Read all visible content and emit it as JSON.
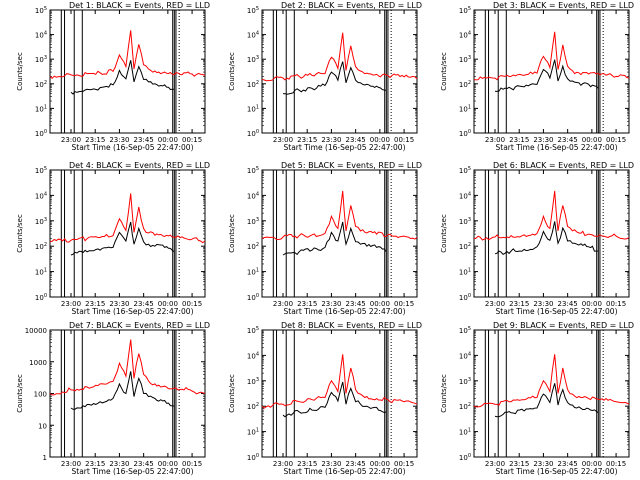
{
  "figure": {
    "start_time_label": "Start Time (16-Sep-05 22:47:00)",
    "ylabel": "Counts/sec",
    "colors": {
      "events": "#000000",
      "lld": "#ff0000",
      "background": "#ffffff"
    }
  },
  "chart_data": [
    {
      "type": "line",
      "title": "Det 1: BLACK = Events, RED = LLD",
      "xlabel": "Start Time (16-Sep-05 22:47:00)",
      "ylabel": "Counts/sec",
      "xlim": [
        "22:47",
        "00:23"
      ],
      "ylim": [
        1,
        100000
      ],
      "yscale": "log",
      "y_tick_labels": [
        "10^0",
        "10^1",
        "10^2",
        "10^3",
        "10^4",
        "10^5"
      ],
      "x_tick_labels": [
        "23:00",
        "23:15",
        "23:30",
        "23:45",
        "00:00",
        "00:15"
      ],
      "series": [
        {
          "name": "Events",
          "color": "#000000",
          "x": [
            "23:00",
            "23:10",
            "23:18",
            "23:26",
            "23:30",
            "23:34",
            "23:37",
            "23:39",
            "23:42",
            "23:45",
            "23:48",
            "23:52",
            "23:58",
            "00:04"
          ],
          "values": [
            45,
            60,
            70,
            90,
            350,
            160,
            900,
            120,
            500,
            150,
            120,
            100,
            90,
            60
          ]
        },
        {
          "name": "LLD",
          "color": "#ff0000",
          "x": [
            "22:47",
            "23:00",
            "23:10",
            "23:18",
            "23:26",
            "23:30",
            "23:34",
            "23:37",
            "23:39",
            "23:42",
            "23:45",
            "23:48",
            "23:52",
            "23:58",
            "00:05",
            "00:15",
            "00:23"
          ],
          "values": [
            200,
            230,
            260,
            280,
            320,
            1500,
            500,
            15000,
            400,
            4000,
            600,
            400,
            330,
            300,
            280,
            250,
            220
          ]
        }
      ]
    },
    {
      "type": "line",
      "title": "Det 2: BLACK = Events, RED = LLD",
      "xlabel": "Start Time (16-Sep-05 22:47:00)",
      "ylabel": "Counts/sec",
      "xlim": [
        "22:47",
        "00:23"
      ],
      "ylim": [
        1,
        100000
      ],
      "yscale": "log",
      "y_tick_labels": [
        "10^0",
        "10^1",
        "10^2",
        "10^3",
        "10^4",
        "10^5"
      ],
      "x_tick_labels": [
        "23:00",
        "23:15",
        "23:30",
        "23:45",
        "00:00",
        "00:15"
      ],
      "series": [
        {
          "name": "Events",
          "color": "#000000",
          "x": [
            "23:00",
            "23:10",
            "23:18",
            "23:26",
            "23:30",
            "23:34",
            "23:37",
            "23:39",
            "23:42",
            "23:45",
            "23:48",
            "23:52",
            "23:58",
            "00:04"
          ],
          "values": [
            40,
            55,
            65,
            85,
            300,
            140,
            800,
            110,
            450,
            140,
            110,
            95,
            80,
            55
          ]
        },
        {
          "name": "LLD",
          "color": "#ff0000",
          "x": [
            "22:47",
            "23:00",
            "23:10",
            "23:18",
            "23:26",
            "23:30",
            "23:34",
            "23:37",
            "23:39",
            "23:42",
            "23:45",
            "23:48",
            "23:52",
            "23:58",
            "00:05",
            "00:15",
            "00:23"
          ],
          "values": [
            150,
            170,
            200,
            220,
            260,
            1200,
            420,
            12000,
            350,
            3500,
            500,
            330,
            270,
            240,
            220,
            190,
            160
          ]
        }
      ]
    },
    {
      "type": "line",
      "title": "Det 3: BLACK = Events, RED = LLD",
      "xlabel": "Start Time (16-Sep-05 22:47:00)",
      "ylabel": "Counts/sec",
      "xlim": [
        "22:47",
        "00:23"
      ],
      "ylim": [
        1,
        100000
      ],
      "yscale": "log",
      "y_tick_labels": [
        "10^0",
        "10^1",
        "10^2",
        "10^3",
        "10^4",
        "10^5"
      ],
      "x_tick_labels": [
        "23:00",
        "23:15",
        "23:30",
        "23:45",
        "00:00",
        "00:15"
      ],
      "series": [
        {
          "name": "Events",
          "color": "#000000",
          "x": [
            "23:00",
            "23:10",
            "23:18",
            "23:26",
            "23:30",
            "23:34",
            "23:37",
            "23:39",
            "23:42",
            "23:45",
            "23:48",
            "23:52",
            "23:58",
            "00:04"
          ],
          "values": [
            50,
            65,
            75,
            95,
            380,
            170,
            950,
            130,
            520,
            160,
            130,
            110,
            95,
            65
          ]
        },
        {
          "name": "LLD",
          "color": "#ff0000",
          "x": [
            "22:47",
            "23:00",
            "23:10",
            "23:18",
            "23:26",
            "23:30",
            "23:34",
            "23:37",
            "23:39",
            "23:42",
            "23:45",
            "23:48",
            "23:52",
            "23:58",
            "00:05",
            "00:15",
            "00:23"
          ],
          "values": [
            150,
            170,
            200,
            220,
            270,
            1300,
            450,
            13000,
            380,
            3800,
            520,
            340,
            280,
            250,
            230,
            200,
            170
          ]
        }
      ]
    },
    {
      "type": "line",
      "title": "Det 4: BLACK = Events, RED = LLD",
      "xlabel": "Start Time (16-Sep-05 22:47:00)",
      "ylabel": "Counts/sec",
      "xlim": [
        "22:47",
        "00:23"
      ],
      "ylim": [
        1,
        100000
      ],
      "yscale": "log",
      "y_tick_labels": [
        "10^0",
        "10^1",
        "10^2",
        "10^3",
        "10^4",
        "10^5"
      ],
      "x_tick_labels": [
        "23:00",
        "23:15",
        "23:30",
        "23:45",
        "00:00",
        "00:15"
      ],
      "series": [
        {
          "name": "Events",
          "color": "#000000",
          "x": [
            "23:00",
            "23:10",
            "23:18",
            "23:26",
            "23:30",
            "23:34",
            "23:37",
            "23:39",
            "23:42",
            "23:45",
            "23:48",
            "23:52",
            "23:58",
            "00:04"
          ],
          "values": [
            45,
            60,
            70,
            90,
            350,
            160,
            900,
            120,
            500,
            150,
            120,
            100,
            90,
            60
          ]
        },
        {
          "name": "LLD",
          "color": "#ff0000",
          "x": [
            "22:47",
            "23:00",
            "23:10",
            "23:18",
            "23:26",
            "23:30",
            "23:34",
            "23:37",
            "23:39",
            "23:42",
            "23:45",
            "23:48",
            "23:52",
            "23:58",
            "00:05",
            "00:15",
            "00:23"
          ],
          "values": [
            150,
            170,
            200,
            220,
            260,
            1200,
            420,
            12000,
            350,
            3500,
            500,
            330,
            270,
            240,
            220,
            190,
            160
          ]
        }
      ]
    },
    {
      "type": "line",
      "title": "Det 5: BLACK = Events, RED = LLD",
      "xlabel": "Start Time (16-Sep-05 22:47:00)",
      "ylabel": "Counts/sec",
      "xlim": [
        "22:47",
        "00:23"
      ],
      "ylim": [
        1,
        100000
      ],
      "yscale": "log",
      "y_tick_labels": [
        "10^0",
        "10^1",
        "10^2",
        "10^3",
        "10^4",
        "10^5"
      ],
      "x_tick_labels": [
        "23:00",
        "23:15",
        "23:30",
        "23:45",
        "00:00",
        "00:15"
      ],
      "series": [
        {
          "name": "Events",
          "color": "#000000",
          "x": [
            "23:00",
            "23:10",
            "23:18",
            "23:26",
            "23:30",
            "23:34",
            "23:37",
            "23:39",
            "23:42",
            "23:45",
            "23:48",
            "23:52",
            "23:58",
            "00:04"
          ],
          "values": [
            45,
            60,
            70,
            90,
            350,
            160,
            900,
            120,
            500,
            150,
            120,
            100,
            90,
            60
          ]
        },
        {
          "name": "LLD",
          "color": "#ff0000",
          "x": [
            "22:47",
            "23:00",
            "23:10",
            "23:18",
            "23:26",
            "23:30",
            "23:34",
            "23:37",
            "23:39",
            "23:42",
            "23:45",
            "23:48",
            "23:52",
            "23:58",
            "00:05",
            "00:15",
            "00:23"
          ],
          "values": [
            200,
            230,
            260,
            280,
            320,
            1500,
            500,
            15000,
            400,
            4000,
            600,
            400,
            330,
            300,
            280,
            250,
            220
          ]
        }
      ]
    },
    {
      "type": "line",
      "title": "Det 6: BLACK = Events, RED = LLD",
      "xlabel": "Start Time (16-Sep-05 22:47:00)",
      "ylabel": "Counts/sec",
      "xlim": [
        "22:47",
        "00:23"
      ],
      "ylim": [
        1,
        100000
      ],
      "yscale": "log",
      "y_tick_labels": [
        "10^0",
        "10^1",
        "10^2",
        "10^3",
        "10^4",
        "10^5"
      ],
      "x_tick_labels": [
        "23:00",
        "23:15",
        "23:30",
        "23:45",
        "00:00",
        "00:15"
      ],
      "series": [
        {
          "name": "Events",
          "color": "#000000",
          "x": [
            "23:00",
            "23:10",
            "23:18",
            "23:26",
            "23:30",
            "23:34",
            "23:37",
            "23:39",
            "23:42",
            "23:45",
            "23:48",
            "23:52",
            "23:58",
            "00:04"
          ],
          "values": [
            50,
            65,
            75,
            95,
            380,
            170,
            950,
            130,
            520,
            160,
            130,
            110,
            95,
            65
          ]
        },
        {
          "name": "LLD",
          "color": "#ff0000",
          "x": [
            "22:47",
            "23:00",
            "23:10",
            "23:18",
            "23:26",
            "23:30",
            "23:34",
            "23:37",
            "23:39",
            "23:42",
            "23:45",
            "23:48",
            "23:52",
            "23:58",
            "00:05",
            "00:15",
            "00:23"
          ],
          "values": [
            200,
            230,
            260,
            280,
            320,
            1500,
            500,
            15000,
            400,
            4000,
            600,
            400,
            330,
            300,
            280,
            250,
            220
          ]
        }
      ]
    },
    {
      "type": "line",
      "title": "Det 7: BLACK = Events, RED = LLD",
      "xlabel": "Start Time (16-Sep-05 22:47:00)",
      "ylabel": "Counts/sec",
      "xlim": [
        "22:47",
        "00:23"
      ],
      "ylim": [
        1,
        10000
      ],
      "yscale": "log",
      "y_tick_labels": [
        "1",
        "10",
        "100",
        "1000",
        "10000"
      ],
      "x_tick_labels": [
        "23:00",
        "23:15",
        "23:30",
        "23:45",
        "00:00",
        "00:15"
      ],
      "series": [
        {
          "name": "Events",
          "color": "#000000",
          "x": [
            "23:00",
            "23:10",
            "23:18",
            "23:26",
            "23:30",
            "23:34",
            "23:37",
            "23:39",
            "23:42",
            "23:45",
            "23:48",
            "23:52",
            "23:58",
            "00:04"
          ],
          "values": [
            35,
            45,
            55,
            70,
            200,
            100,
            500,
            80,
            300,
            100,
            80,
            70,
            60,
            40
          ]
        },
        {
          "name": "LLD",
          "color": "#ff0000",
          "x": [
            "22:47",
            "23:00",
            "23:10",
            "23:18",
            "23:26",
            "23:30",
            "23:34",
            "23:37",
            "23:39",
            "23:42",
            "23:45",
            "23:48",
            "23:52",
            "23:58",
            "00:05",
            "00:15",
            "00:23"
          ],
          "values": [
            100,
            130,
            160,
            200,
            240,
            900,
            350,
            5000,
            300,
            1800,
            400,
            250,
            200,
            170,
            150,
            120,
            100
          ]
        }
      ]
    },
    {
      "type": "line",
      "title": "Det 8: BLACK = Events, RED = LLD",
      "xlabel": "Start Time (16-Sep-05 22:47:00)",
      "ylabel": "Counts/sec",
      "xlim": [
        "22:47",
        "00:23"
      ],
      "ylim": [
        1,
        100000
      ],
      "yscale": "log",
      "y_tick_labels": [
        "10^0",
        "10^1",
        "10^2",
        "10^3",
        "10^4",
        "10^5"
      ],
      "x_tick_labels": [
        "23:00",
        "23:15",
        "23:30",
        "23:45",
        "00:00",
        "00:15"
      ],
      "series": [
        {
          "name": "Events",
          "color": "#000000",
          "x": [
            "23:00",
            "23:10",
            "23:18",
            "23:26",
            "23:30",
            "23:34",
            "23:37",
            "23:39",
            "23:42",
            "23:45",
            "23:48",
            "23:52",
            "23:58",
            "00:04"
          ],
          "values": [
            45,
            60,
            70,
            90,
            350,
            160,
            900,
            120,
            500,
            150,
            120,
            100,
            90,
            60
          ]
        },
        {
          "name": "LLD",
          "color": "#ff0000",
          "x": [
            "22:47",
            "23:00",
            "23:10",
            "23:18",
            "23:26",
            "23:30",
            "23:34",
            "23:37",
            "23:39",
            "23:42",
            "23:45",
            "23:48",
            "23:52",
            "23:58",
            "00:05",
            "00:15",
            "00:23"
          ],
          "values": [
            100,
            120,
            150,
            180,
            220,
            1000,
            380,
            11000,
            320,
            3200,
            450,
            300,
            240,
            200,
            180,
            150,
            120
          ]
        }
      ]
    },
    {
      "type": "line",
      "title": "Det 9: BLACK = Events, RED = LLD",
      "xlabel": "Start Time (16-Sep-05 22:47:00)",
      "ylabel": "Counts/sec",
      "xlim": [
        "22:47",
        "00:23"
      ],
      "ylim": [
        1,
        100000
      ],
      "yscale": "log",
      "y_tick_labels": [
        "10^0",
        "10^1",
        "10^2",
        "10^3",
        "10^4",
        "10^5"
      ],
      "x_tick_labels": [
        "23:00",
        "23:15",
        "23:30",
        "23:45",
        "00:00",
        "00:15"
      ],
      "series": [
        {
          "name": "Events",
          "color": "#000000",
          "x": [
            "23:00",
            "23:10",
            "23:18",
            "23:26",
            "23:30",
            "23:34",
            "23:37",
            "23:39",
            "23:42",
            "23:45",
            "23:48",
            "23:52",
            "23:58",
            "00:04"
          ],
          "values": [
            40,
            55,
            65,
            85,
            300,
            140,
            800,
            110,
            450,
            140,
            110,
            95,
            80,
            55
          ]
        },
        {
          "name": "LLD",
          "color": "#ff0000",
          "x": [
            "22:47",
            "23:00",
            "23:10",
            "23:18",
            "23:26",
            "23:30",
            "23:34",
            "23:37",
            "23:39",
            "23:42",
            "23:45",
            "23:48",
            "23:52",
            "23:58",
            "00:05",
            "00:15",
            "00:23"
          ],
          "values": [
            100,
            120,
            150,
            180,
            220,
            1000,
            380,
            11000,
            320,
            3200,
            450,
            300,
            240,
            200,
            180,
            150,
            120
          ]
        }
      ]
    }
  ]
}
